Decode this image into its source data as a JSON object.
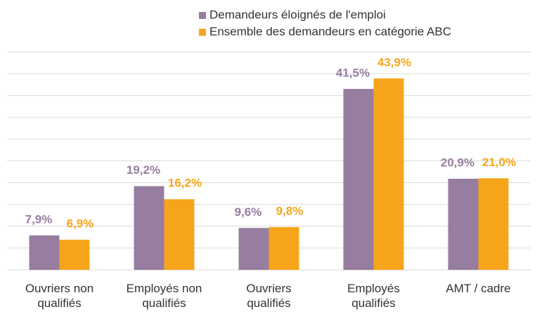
{
  "chart_data": {
    "type": "bar",
    "categories": [
      "Ouvriers non qualifiés",
      "Employés non qualifiés",
      "Ouvriers qualifiés",
      "Employés qualifiés",
      "AMT / cadre"
    ],
    "series": [
      {
        "name": "Demandeurs éloignés de l'emploi",
        "color": "#977da0",
        "values": [
          7.9,
          19.2,
          9.6,
          41.5,
          20.9
        ],
        "value_labels": [
          "7,9%",
          "19,2%",
          "9,6%",
          "41,5%",
          "20,9%"
        ]
      },
      {
        "name": "Ensemble des demandeurs en catégorie ABC",
        "color": "#f6a51b",
        "values": [
          6.9,
          16.2,
          9.8,
          43.9,
          21.0
        ],
        "value_labels": [
          "6,9%",
          "16,2%",
          "9,8%",
          "43,9%",
          "21,0%"
        ]
      }
    ],
    "ylim": [
      0,
      50
    ],
    "yticks": [
      0,
      5,
      10,
      15,
      20,
      25,
      30,
      35,
      40,
      45,
      50
    ],
    "grid": true,
    "legend": "top"
  }
}
